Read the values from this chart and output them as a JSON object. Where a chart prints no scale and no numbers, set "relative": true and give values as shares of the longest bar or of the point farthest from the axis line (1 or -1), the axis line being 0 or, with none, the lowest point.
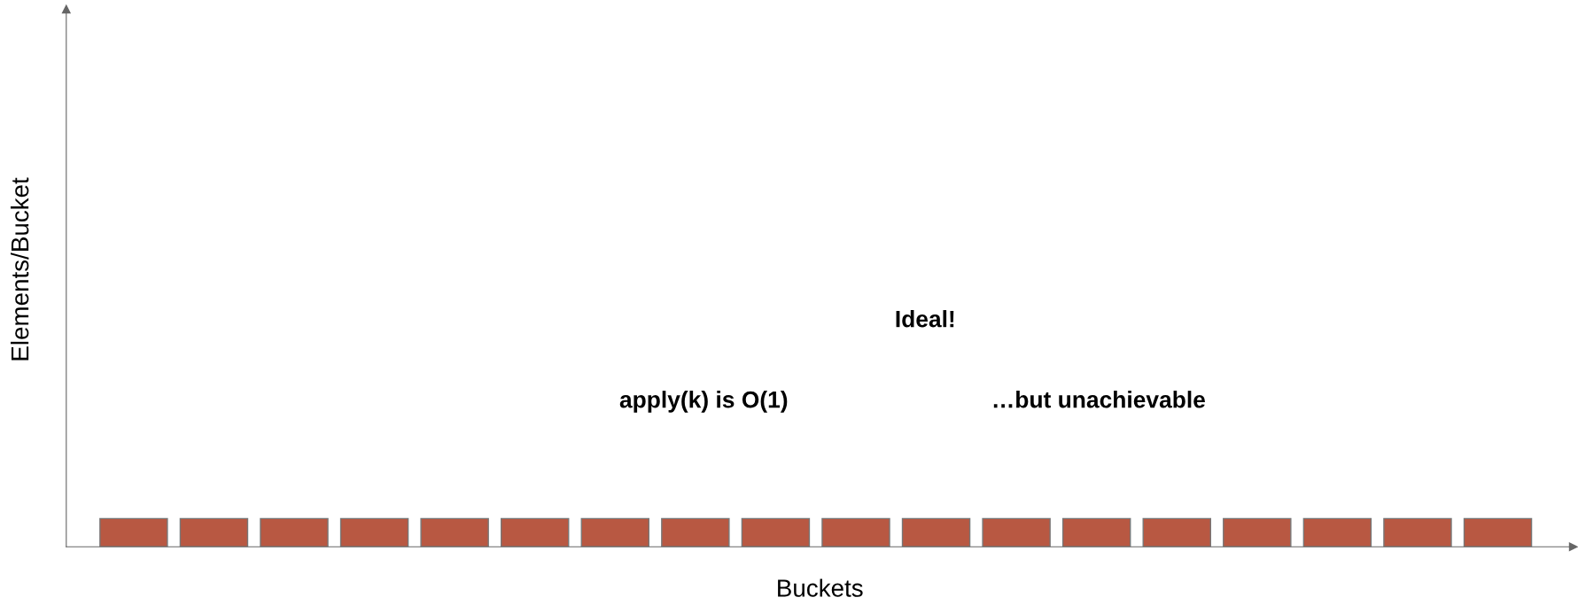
{
  "chart_data": {
    "type": "bar",
    "relative": true,
    "xlabel": "Buckets",
    "categories": [
      null,
      null,
      null,
      null,
      null,
      null,
      null,
      null,
      null,
      null,
      null,
      null,
      null,
      null,
      null,
      null,
      null,
      null
    ],
    "values": [
      1,
      1,
      1,
      1,
      1,
      1,
      1,
      1,
      1,
      1,
      1,
      1,
      1,
      1,
      1,
      1,
      1,
      1
    ],
    "color": "#b85842",
    "annotations": [
      "Ideal!",
      "apply(k) is O(1)",
      "…but unachievable",
      "Elements/Bucket"
    ],
    "tick_labels": false
  }
}
